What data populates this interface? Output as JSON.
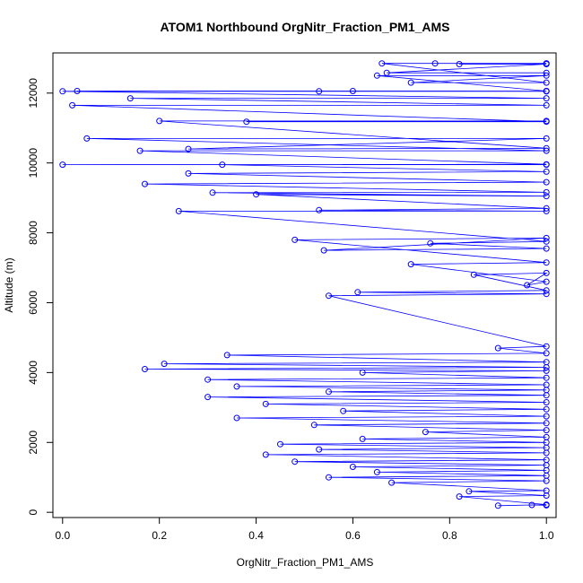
{
  "chart_data": {
    "type": "scatter",
    "title": "ATOM1 Northbound OrgNitr_Fraction_PM1_AMS",
    "xlabel": "OrgNitr_Fraction_PM1_AMS",
    "ylabel": "Altitude (m)",
    "xlim": [
      -0.02,
      1.02
    ],
    "ylim": [
      -150,
      13150
    ],
    "x_ticks": [
      0.0,
      0.2,
      0.4,
      0.6,
      0.8,
      1.0
    ],
    "x_tick_labels": [
      "0.0",
      "0.2",
      "0.4",
      "0.6",
      "0.8",
      "1.0"
    ],
    "y_ticks": [
      0,
      2000,
      4000,
      6000,
      8000,
      10000,
      12000
    ],
    "y_tick_labels": [
      "0",
      "2000",
      "4000",
      "6000",
      "8000",
      "10000",
      "12000"
    ],
    "grid": false,
    "legend": "none",
    "series": [
      {
        "color": "#0000ff",
        "marker": "open-circle",
        "connected": true,
        "points": [
          [
            1.0,
            200
          ],
          [
            0.97,
            210
          ],
          [
            0.9,
            190
          ],
          [
            1.0,
            220
          ],
          [
            0.82,
            450
          ],
          [
            1.0,
            480
          ],
          [
            0.84,
            600
          ],
          [
            1.0,
            620
          ],
          [
            0.68,
            850
          ],
          [
            1.0,
            900
          ],
          [
            0.55,
            1000
          ],
          [
            1.0,
            1050
          ],
          [
            0.65,
            1150
          ],
          [
            1.0,
            1200
          ],
          [
            0.6,
            1300
          ],
          [
            1.0,
            1350
          ],
          [
            0.48,
            1450
          ],
          [
            1.0,
            1500
          ],
          [
            0.42,
            1650
          ],
          [
            1.0,
            1700
          ],
          [
            0.53,
            1800
          ],
          [
            1.0,
            1850
          ],
          [
            0.45,
            1950
          ],
          [
            1.0,
            2000
          ],
          [
            0.62,
            2100
          ],
          [
            1.0,
            2150
          ],
          [
            0.75,
            2300
          ],
          [
            1.0,
            2350
          ],
          [
            0.52,
            2500
          ],
          [
            1.0,
            2550
          ],
          [
            0.36,
            2700
          ],
          [
            1.0,
            2750
          ],
          [
            0.58,
            2900
          ],
          [
            1.0,
            2950
          ],
          [
            0.42,
            3100
          ],
          [
            1.0,
            3150
          ],
          [
            0.3,
            3300
          ],
          [
            1.0,
            3350
          ],
          [
            0.55,
            3450
          ],
          [
            1.0,
            3500
          ],
          [
            0.36,
            3600
          ],
          [
            1.0,
            3650
          ],
          [
            0.3,
            3800
          ],
          [
            1.0,
            3850
          ],
          [
            0.62,
            4000
          ],
          [
            1.0,
            4050
          ],
          [
            0.17,
            4100
          ],
          [
            1.0,
            4150
          ],
          [
            0.21,
            4250
          ],
          [
            1.0,
            4300
          ],
          [
            0.34,
            4500
          ],
          [
            1.0,
            4550
          ],
          [
            0.9,
            4700
          ],
          [
            1.0,
            4750
          ],
          [
            0.55,
            6200
          ],
          [
            1.0,
            6250
          ],
          [
            0.61,
            6300
          ],
          [
            1.0,
            6350
          ],
          [
            0.85,
            6800
          ],
          [
            1.0,
            6850
          ],
          [
            0.96,
            6500
          ],
          [
            1.0,
            6600
          ],
          [
            0.72,
            7100
          ],
          [
            1.0,
            7150
          ],
          [
            0.48,
            7800
          ],
          [
            1.0,
            7850
          ],
          [
            0.54,
            7500
          ],
          [
            1.0,
            7550
          ],
          [
            0.76,
            7700
          ],
          [
            1.0,
            7750
          ],
          [
            0.24,
            8620
          ],
          [
            1.0,
            8620
          ],
          [
            0.53,
            8650
          ],
          [
            1.0,
            8700
          ],
          [
            0.4,
            9100
          ],
          [
            1.0,
            9050
          ],
          [
            0.31,
            9150
          ],
          [
            1.0,
            9160
          ],
          [
            0.17,
            9400
          ],
          [
            1.0,
            9450
          ],
          [
            0.26,
            9700
          ],
          [
            1.0,
            9750
          ],
          [
            0.33,
            9950
          ],
          [
            1.0,
            9950
          ],
          [
            0.0,
            9950
          ],
          [
            1.0,
            9960
          ],
          [
            0.16,
            10350
          ],
          [
            1.0,
            10350
          ],
          [
            0.05,
            10700
          ],
          [
            1.0,
            10700
          ],
          [
            0.26,
            10400
          ],
          [
            1.0,
            10420
          ],
          [
            0.2,
            11200
          ],
          [
            1.0,
            11200
          ],
          [
            0.38,
            11180
          ],
          [
            1.0,
            11180
          ],
          [
            0.02,
            11650
          ],
          [
            1.0,
            11650
          ],
          [
            0.14,
            11850
          ],
          [
            1.0,
            11850
          ],
          [
            0.0,
            12050
          ],
          [
            1.0,
            12050
          ],
          [
            0.03,
            12060
          ],
          [
            1.0,
            12060
          ],
          [
            0.53,
            12050
          ],
          [
            1.0,
            12050
          ],
          [
            0.6,
            12060
          ],
          [
            1.0,
            12060
          ],
          [
            0.65,
            12500
          ],
          [
            1.0,
            12500
          ],
          [
            0.72,
            12300
          ],
          [
            1.0,
            12300
          ],
          [
            0.66,
            12850
          ],
          [
            1.0,
            12850
          ],
          [
            0.77,
            12850
          ],
          [
            1.0,
            12850
          ],
          [
            0.82,
            12830
          ],
          [
            1.0,
            12830
          ],
          [
            0.67,
            12580
          ],
          [
            1.0,
            12580
          ]
        ]
      }
    ]
  }
}
